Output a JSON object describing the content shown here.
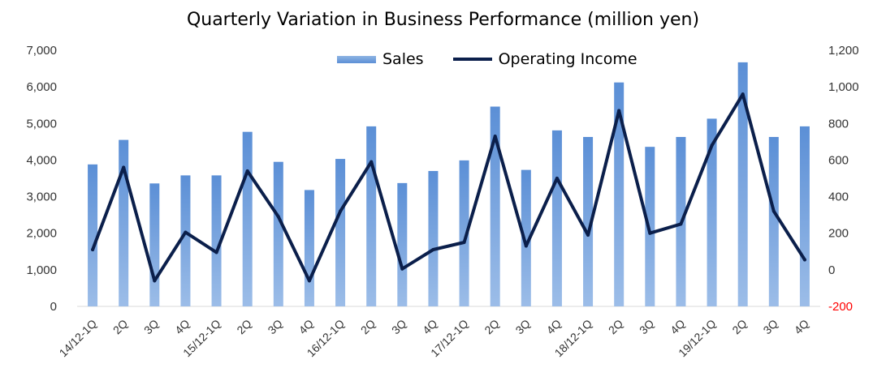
{
  "chart_data": {
    "type": "bar",
    "title": "Quarterly Variation in Business Performance (million yen)",
    "categories": [
      "14/12-1Q",
      "2Q",
      "3Q",
      "4Q",
      "15/12-1Q",
      "2Q",
      "3Q",
      "4Q",
      "16/12-1Q",
      "2Q",
      "3Q",
      "4Q",
      "17/12-1Q",
      "2Q",
      "3Q",
      "4Q",
      "18/12-1Q",
      "2Q",
      "3Q",
      "4Q",
      "19/12-1Q",
      "2Q",
      "3Q",
      "4Q"
    ],
    "series": [
      {
        "name": "Sales",
        "type": "bar",
        "axis": "left",
        "color": "#6f9ee0",
        "values": [
          3880,
          4550,
          3360,
          3580,
          3580,
          4770,
          3950,
          3180,
          4030,
          4920,
          3370,
          3700,
          3990,
          5460,
          3730,
          4810,
          4630,
          6120,
          4360,
          4630,
          5130,
          6670,
          4630,
          4920
        ]
      },
      {
        "name": "Operating Income",
        "type": "line",
        "axis": "right",
        "color": "#0b1f4b",
        "values": [
          110,
          560,
          -60,
          205,
          95,
          540,
          290,
          -60,
          320,
          590,
          5,
          110,
          150,
          730,
          130,
          500,
          190,
          870,
          200,
          250,
          680,
          960,
          320,
          55
        ]
      }
    ],
    "left_axis": {
      "ylim": [
        0,
        7000
      ],
      "ticks": [
        "0",
        "1,000",
        "2,000",
        "3,000",
        "4,000",
        "5,000",
        "6,000",
        "7,000"
      ]
    },
    "right_axis": {
      "ylim": [
        -200,
        1200
      ],
      "ticks": [
        "-200",
        "0",
        "200",
        "400",
        "600",
        "800",
        "1,000",
        "1,200"
      ],
      "negative_color": "#ff0000"
    },
    "grid": false,
    "legend_position": "top-center"
  }
}
